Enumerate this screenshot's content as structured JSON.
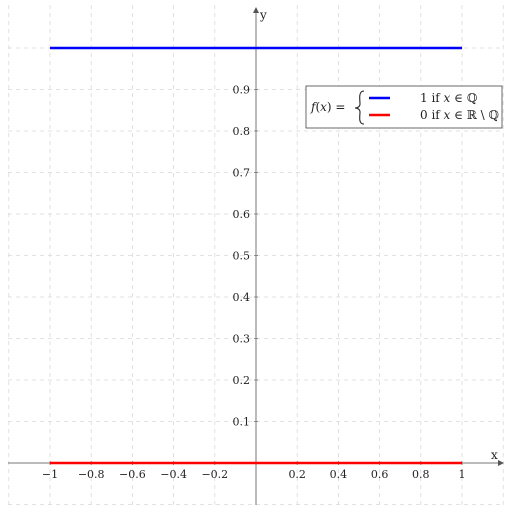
{
  "chart_data": {
    "type": "line",
    "x_label": "x",
    "y_label": "y",
    "xlim": [
      -1.2,
      1.2
    ],
    "ylim": [
      -0.1,
      1.1
    ],
    "x_ticks": [
      -1,
      -0.8,
      -0.6,
      -0.4,
      -0.2,
      0.2,
      0.4,
      0.6,
      0.8,
      1
    ],
    "x_tick_labels": [
      "−1",
      "−0.8",
      "−0.6",
      "−0.4",
      "−0.2",
      "0.2",
      "0.4",
      "0.6",
      "0.8",
      "1"
    ],
    "y_ticks": [
      0.1,
      0.2,
      0.3,
      0.4,
      0.5,
      0.6,
      0.7,
      0.8,
      0.9
    ],
    "y_tick_labels": [
      "0.1",
      "0.2",
      "0.3",
      "0.4",
      "0.5",
      "0.6",
      "0.7",
      "0.8",
      "0.9"
    ],
    "grid": true,
    "legend_position": "top-right",
    "legend_prefix": "f(x) = {",
    "series": [
      {
        "label": "1 if x ∈ ℚ",
        "color": "#0000ff",
        "x": [
          -1,
          1
        ],
        "y": [
          1,
          1
        ]
      },
      {
        "label": "0 if x ∈ ℝ \\ ℚ",
        "color": "#ff0000",
        "x": [
          -1,
          1
        ],
        "y": [
          0,
          0
        ]
      }
    ]
  }
}
